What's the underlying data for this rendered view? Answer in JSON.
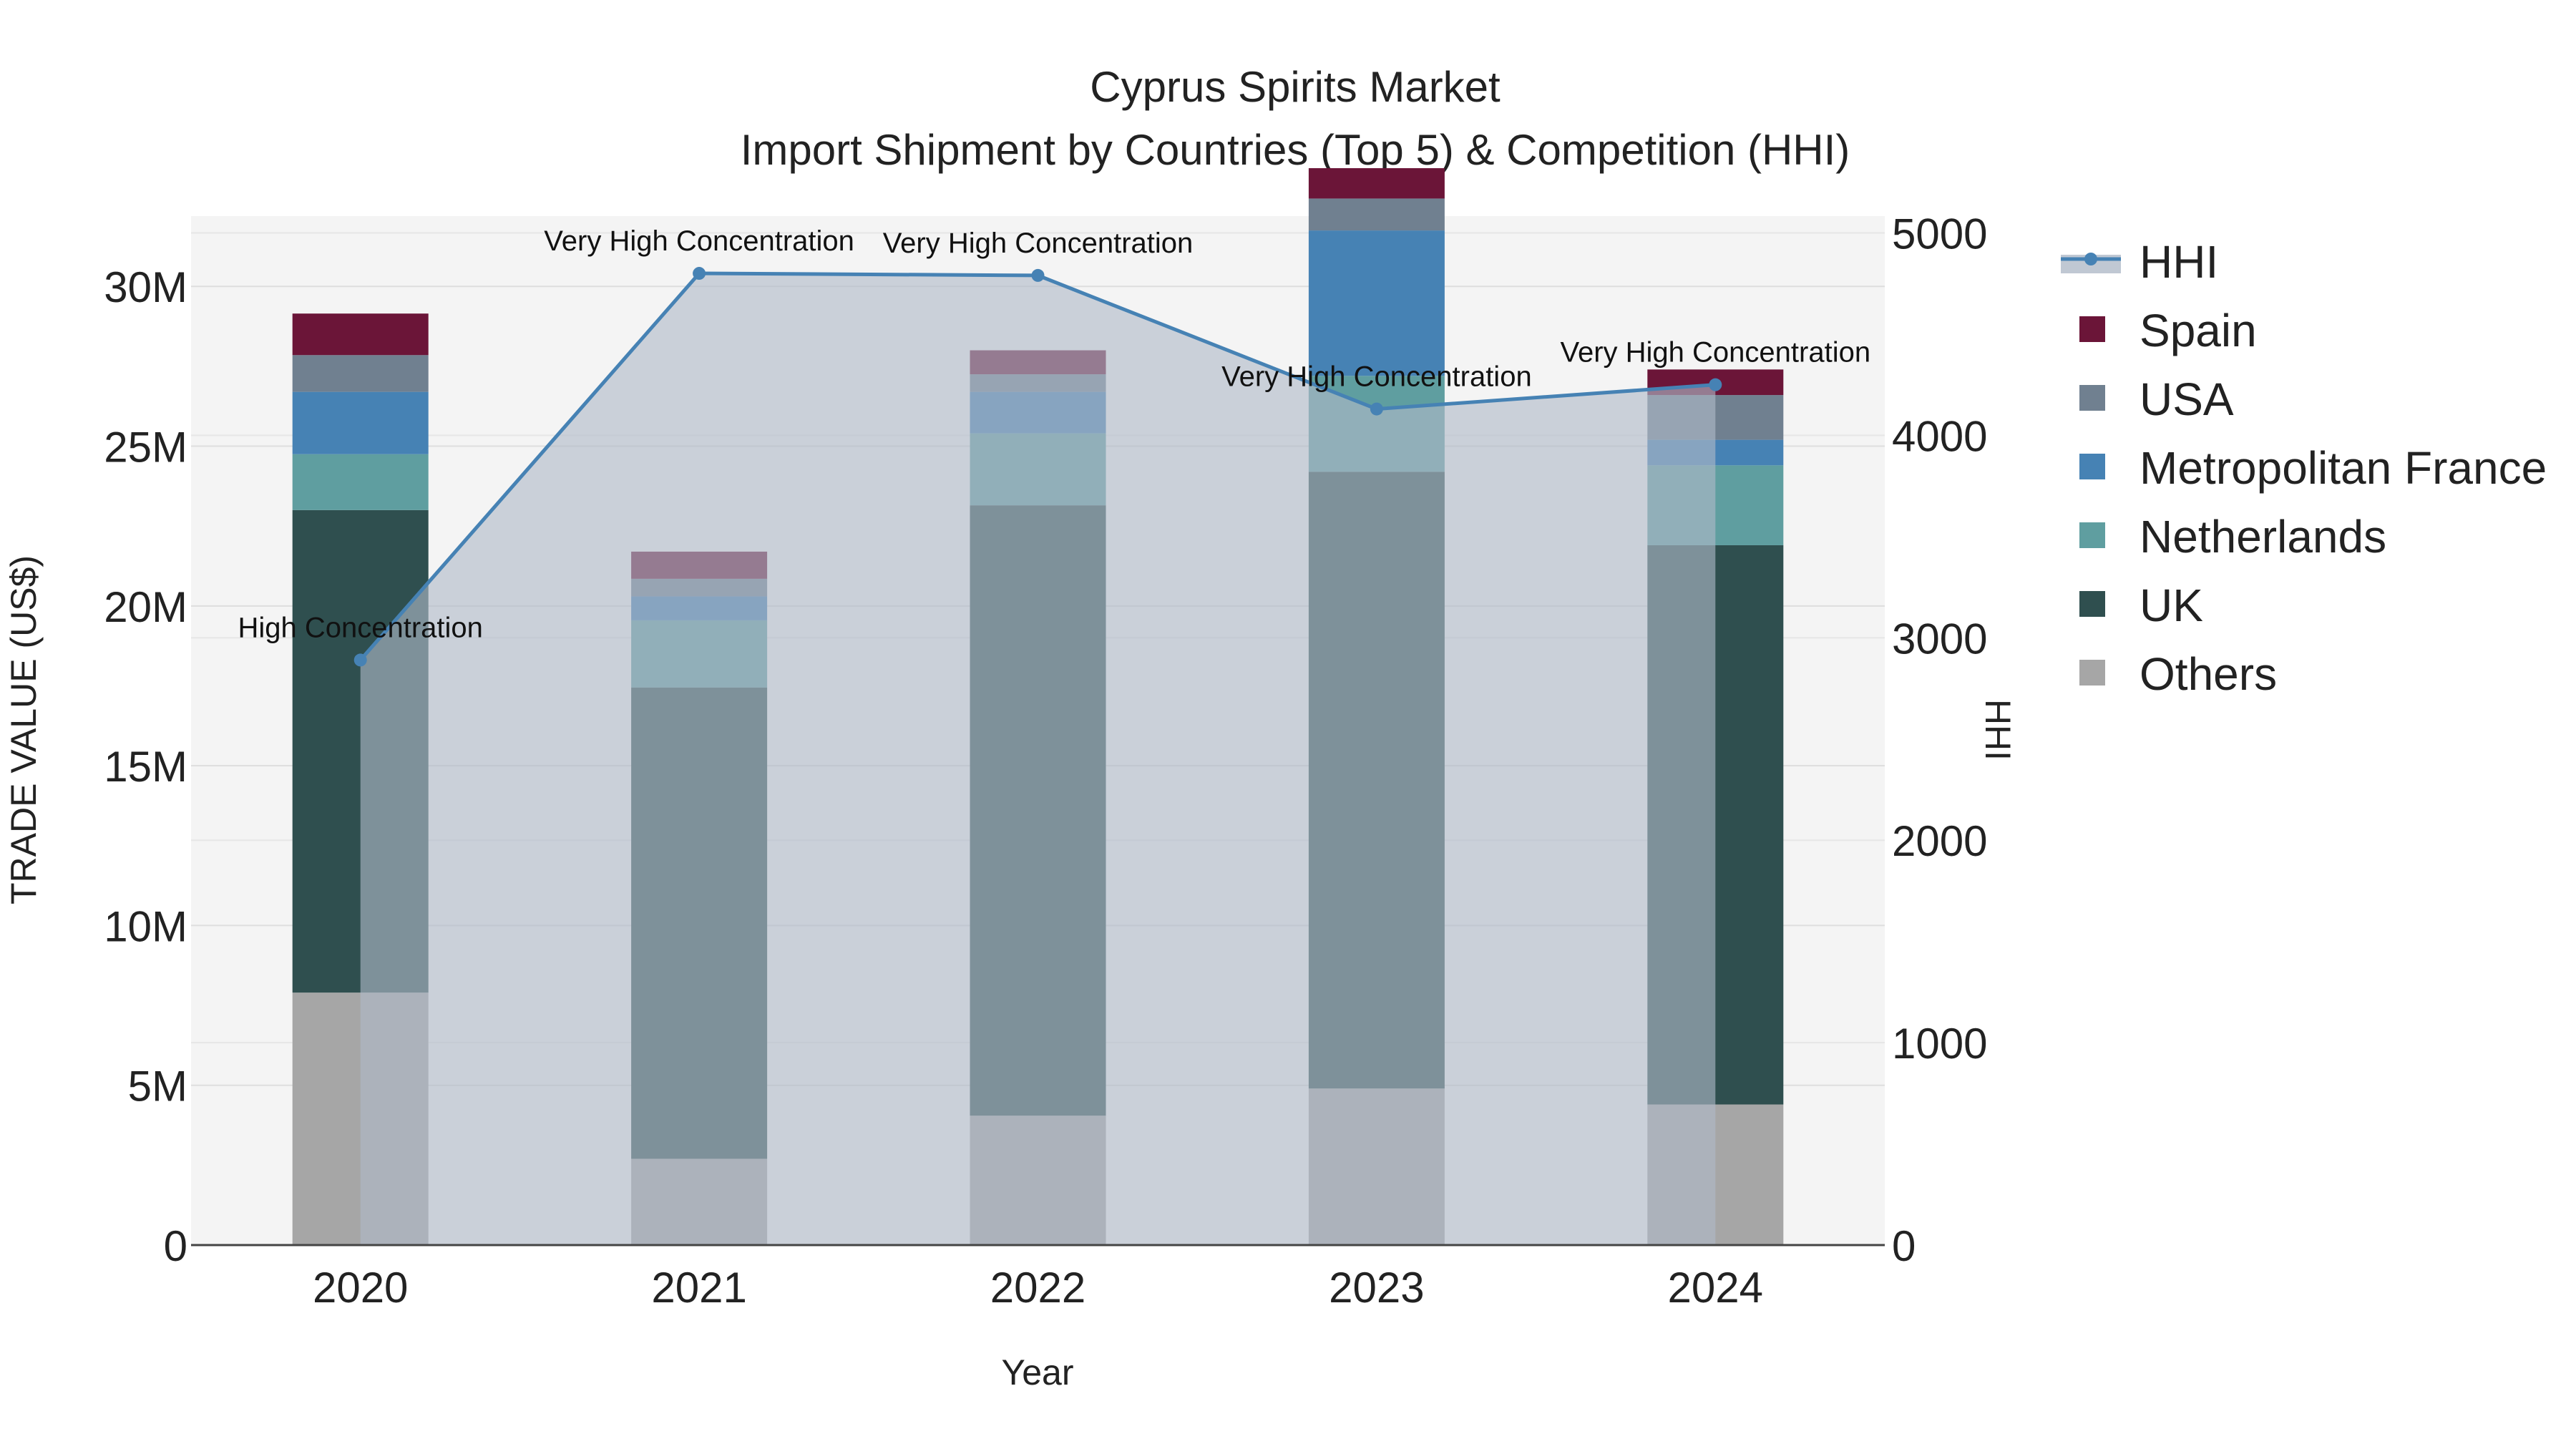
{
  "chart_data": {
    "type": "bar",
    "title": "Cyprus Spirits Market",
    "subtitle": "Import Shipment by Countries (Top 5) & Competition (HHI)",
    "xlabel": "Year",
    "ylabel": "TRADE VALUE (US$)",
    "y2label": "HHI",
    "categories": [
      "2020",
      "2021",
      "2022",
      "2023",
      "2024"
    ],
    "ylim": [
      0,
      32200000
    ],
    "y2lim": [
      0,
      5083
    ],
    "yticks": [
      0,
      5000000,
      10000000,
      15000000,
      20000000,
      25000000,
      30000000
    ],
    "ytick_labels": [
      "0",
      "5M",
      "10M",
      "15M",
      "20M",
      "25M",
      "30M"
    ],
    "y2ticks": [
      0,
      1000,
      2000,
      3000,
      4000,
      5000
    ],
    "y2tick_labels": [
      "0",
      "1000",
      "2000",
      "3000",
      "4000",
      "5000"
    ],
    "series": [
      {
        "name": "Others",
        "color": "#a6a6a6",
        "values": [
          7900000,
          2700000,
          4050000,
          4900000,
          4400000
        ]
      },
      {
        "name": "UK",
        "color": "#2f4f4f",
        "values": [
          15100000,
          14750000,
          19100000,
          19300000,
          17500000
        ]
      },
      {
        "name": "Netherlands",
        "color": "#5f9ea0",
        "values": [
          1750000,
          2100000,
          2250000,
          3000000,
          2500000
        ]
      },
      {
        "name": "Metropolitan France",
        "color": "#4682b4",
        "values": [
          1950000,
          750000,
          1300000,
          4550000,
          800000
        ]
      },
      {
        "name": "USA",
        "color": "#708090",
        "values": [
          1150000,
          550000,
          550000,
          1000000,
          1400000
        ]
      },
      {
        "name": "Spain",
        "color": "#6b1538",
        "values": [
          1300000,
          850000,
          750000,
          950000,
          800000
        ]
      }
    ],
    "hhi": {
      "name": "HHI",
      "color": "#4682b4",
      "fill_color": "#b0bac8",
      "values": [
        2890,
        4800,
        4790,
        4130,
        4250
      ],
      "annotations": [
        "High Concentration",
        "Very High Concentration",
        "Very High Concentration",
        "Very High Concentration",
        "Very High Concentration"
      ]
    },
    "legend_position": "right",
    "legend_order": [
      "HHI",
      "Spain",
      "USA",
      "Metropolitan France",
      "Netherlands",
      "UK",
      "Others"
    ]
  }
}
